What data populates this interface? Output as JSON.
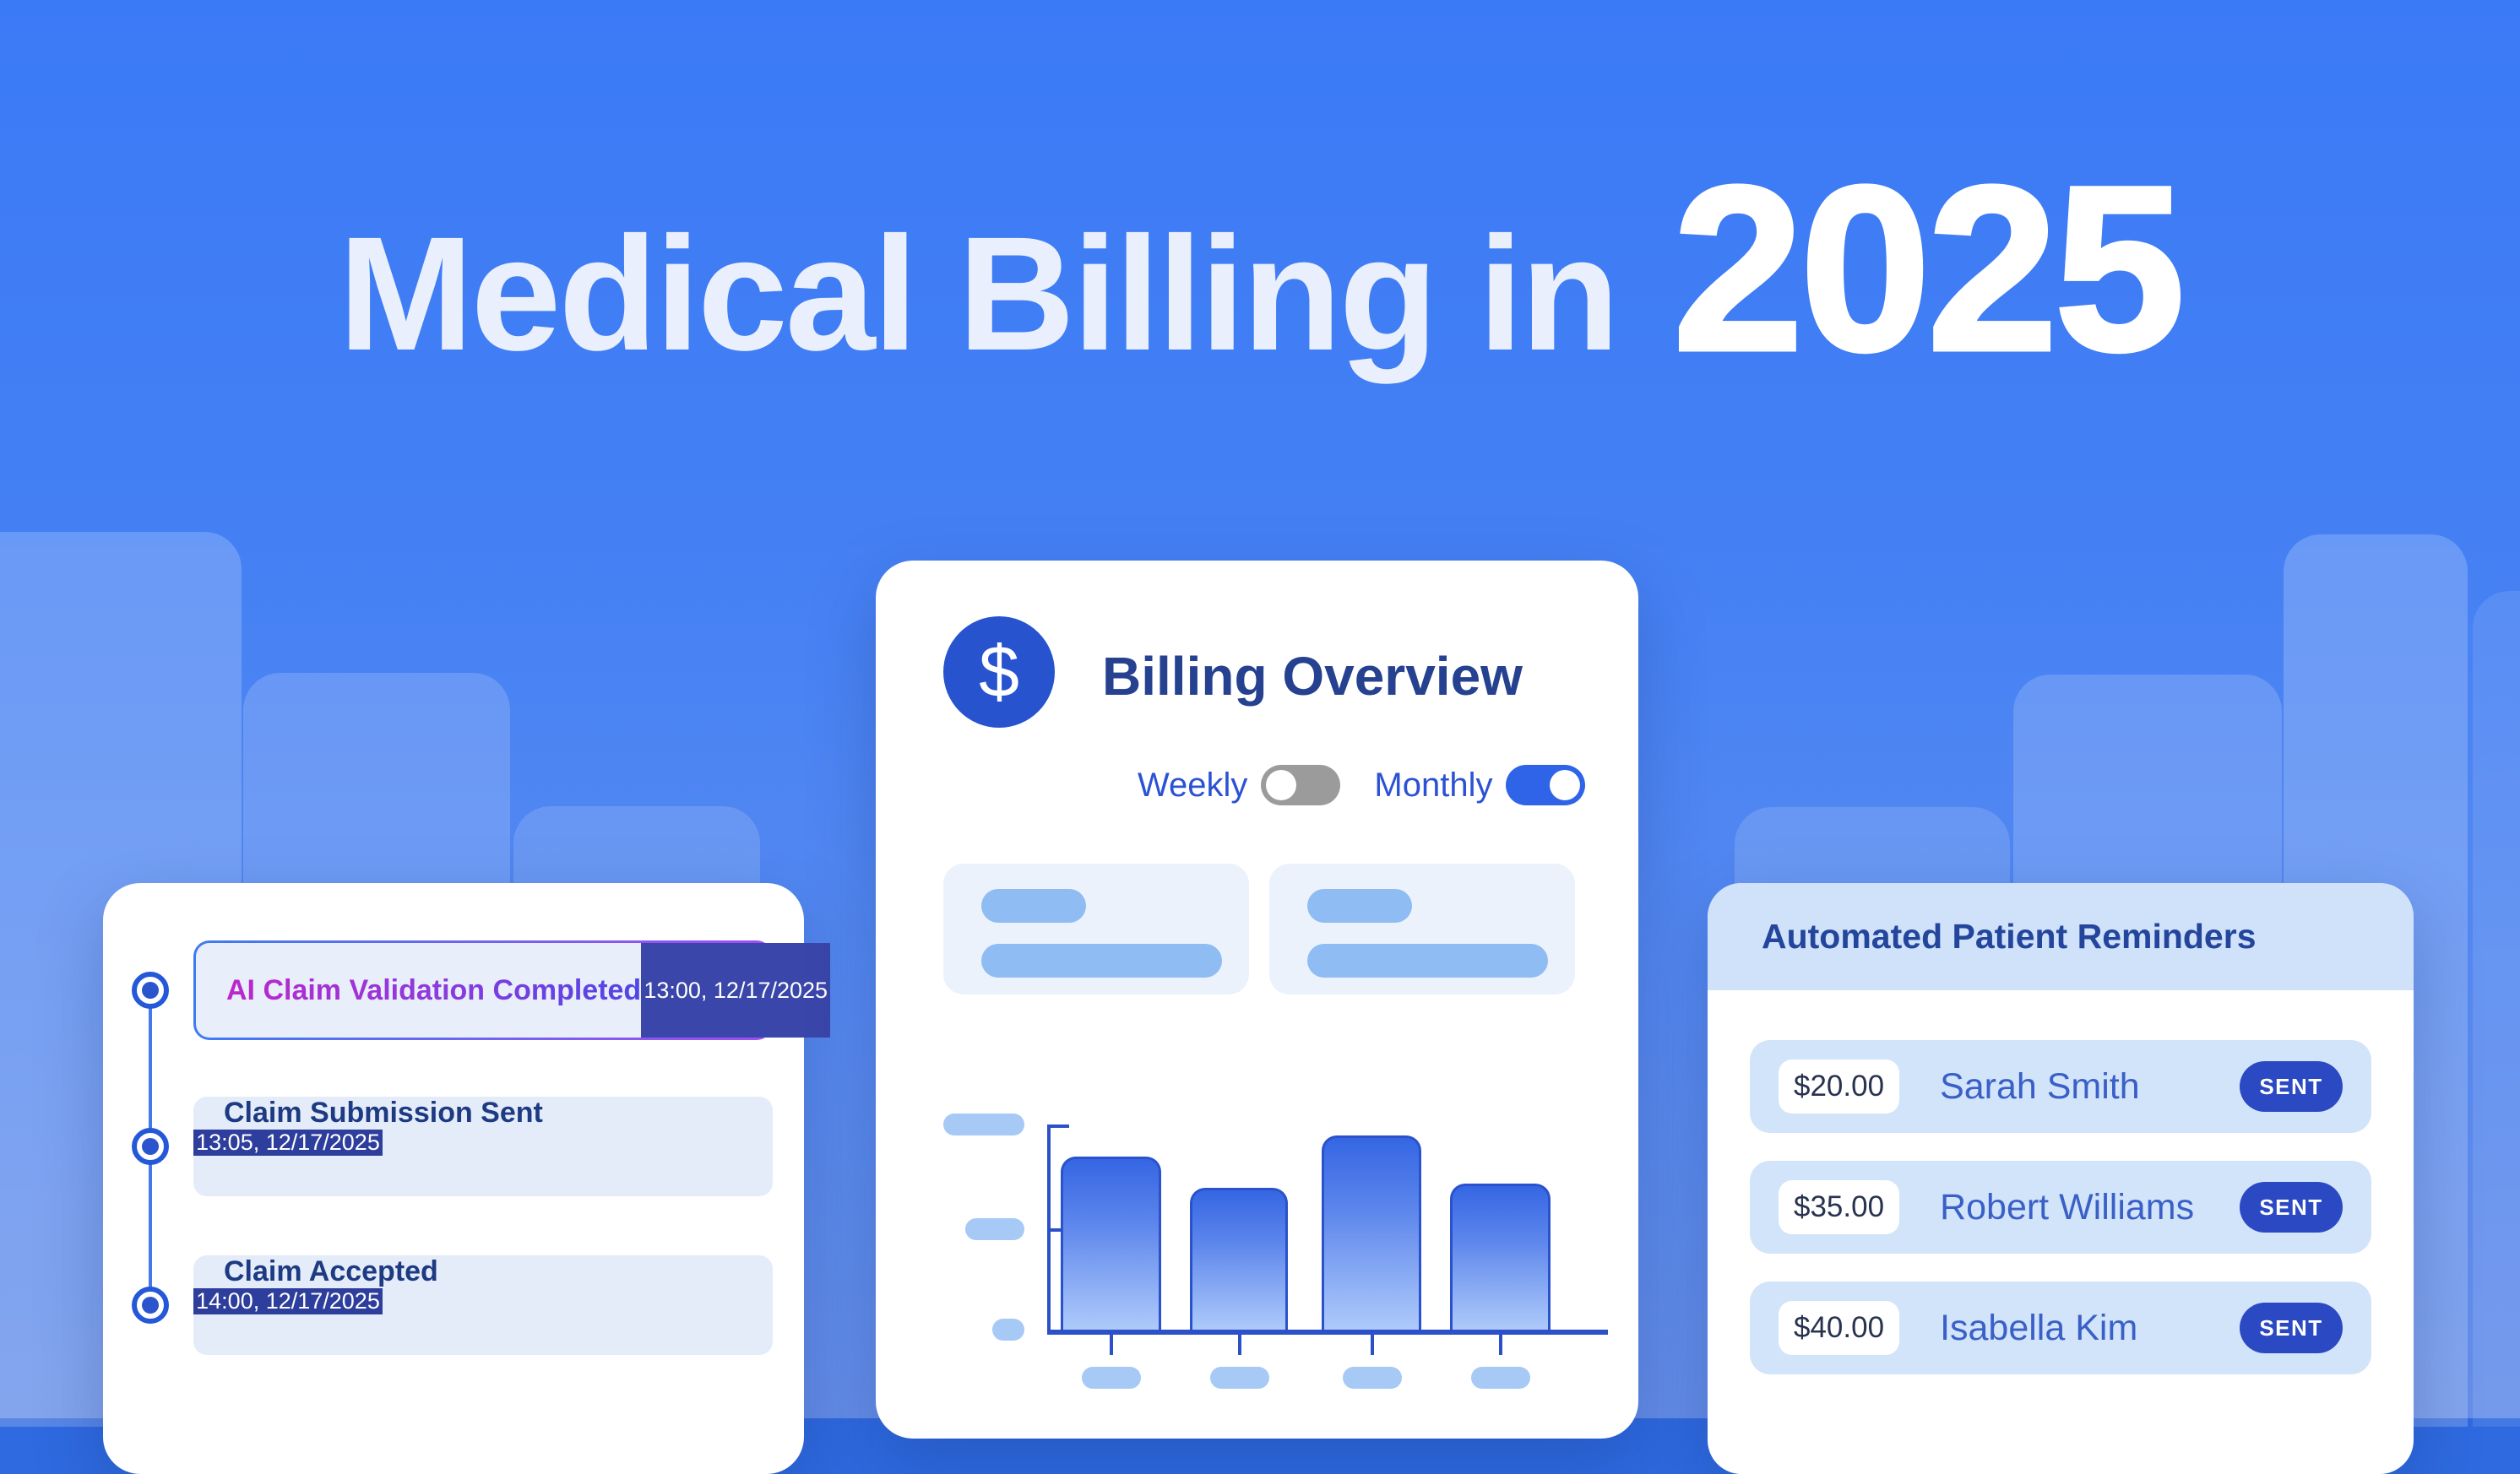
{
  "title": {
    "phrase": "Medical Billing in",
    "year": "2025"
  },
  "timeline_card": {
    "rows": [
      {
        "label": "AI Claim Validation Completed",
        "timestamp": "13:00, 12/17/2025",
        "highlighted": true
      },
      {
        "label": "Claim Submission Sent",
        "timestamp": "13:05, 12/17/2025",
        "highlighted": false
      },
      {
        "label": "Claim Accepted",
        "timestamp": "14:00, 12/17/2025",
        "highlighted": false
      }
    ]
  },
  "billing_card": {
    "title": "Billing Overview",
    "dollar_symbol": "$",
    "toggles": [
      {
        "label": "Weekly",
        "on": false
      },
      {
        "label": "Monthly",
        "on": true
      }
    ],
    "chart_data": {
      "type": "bar",
      "title": "",
      "xlabel": "",
      "ylabel": "",
      "categories": [
        "",
        "",
        "",
        ""
      ],
      "values_pct_of_axis": [
        83,
        68,
        93,
        70
      ],
      "ylim": [
        0,
        100
      ],
      "grid": false,
      "legend": false,
      "tick_style": "skeleton placeholder pills, no text"
    }
  },
  "reminders_card": {
    "title": "Automated Patient Reminders",
    "rows": [
      {
        "amount": "$20.00",
        "name": "Sarah Smith",
        "status": "SENT"
      },
      {
        "amount": "$35.00",
        "name": "Robert Williams",
        "status": "SENT"
      },
      {
        "amount": "$40.00",
        "name": "Isabella Kim",
        "status": "SENT"
      }
    ]
  },
  "colors": {
    "background_top": "#3b7af6",
    "background_bottom": "#668fe9",
    "accent_blue": "#2f63e8",
    "navy_text": "#25418f",
    "timeline_text": "#1d3a82",
    "timeline_date_bg": "#2e3e9c",
    "highlight_date_bg": "#3a46aa",
    "highlight_gradient": [
      "#c224c9",
      "#8b3bdd",
      "#4f46e5"
    ],
    "toggle_off": "#9b9b9b",
    "reminder_row_bg": "#d2e4f9",
    "reminder_name": "#3a60c8",
    "sent_button_bg": "#2b49c3",
    "bar_gradient_top": "#3566e3",
    "bar_gradient_bottom": "#aecafa",
    "axis_color": "#2b50c8",
    "skeleton_bar": "#8fbcf3"
  }
}
